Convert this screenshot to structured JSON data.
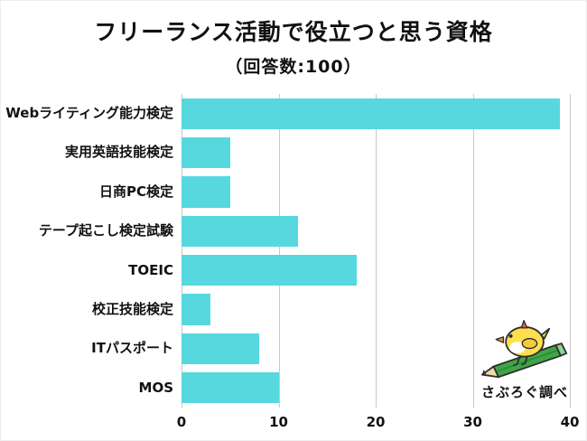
{
  "header": {
    "title": "フリーランス活動で役立つと思う資格",
    "subtitle": "（回答数:100）"
  },
  "chart_data": {
    "type": "bar",
    "orientation": "horizontal",
    "title": "フリーランス活動で役立つと思う資格",
    "subtitle": "（回答数:100）",
    "categories": [
      "Webライティング能力検定",
      "実用英語技能検定",
      "日商PC検定",
      "テープ起こし検定試験",
      "TOEIC",
      "校正技能検定",
      "ITパスポート",
      "MOS"
    ],
    "values": [
      39,
      5,
      5,
      12,
      18,
      3,
      8,
      10
    ],
    "xlabel": "",
    "ylabel": "",
    "xlim": [
      0,
      40
    ],
    "xticks": [
      0,
      10,
      20,
      30,
      40
    ],
    "grid": true,
    "legend": false,
    "bar_color": "#57d8de"
  },
  "mascot": {
    "credit": "さぶろぐ調べ",
    "icon": "chick-with-pencil-icon"
  },
  "colors": {
    "bar": "#57d8de",
    "grid": "#c9c9c9",
    "text": "#111111",
    "background": "#ffffff",
    "pencil_green": "#3fa646",
    "chick_yellow": "#ffdf4f"
  }
}
